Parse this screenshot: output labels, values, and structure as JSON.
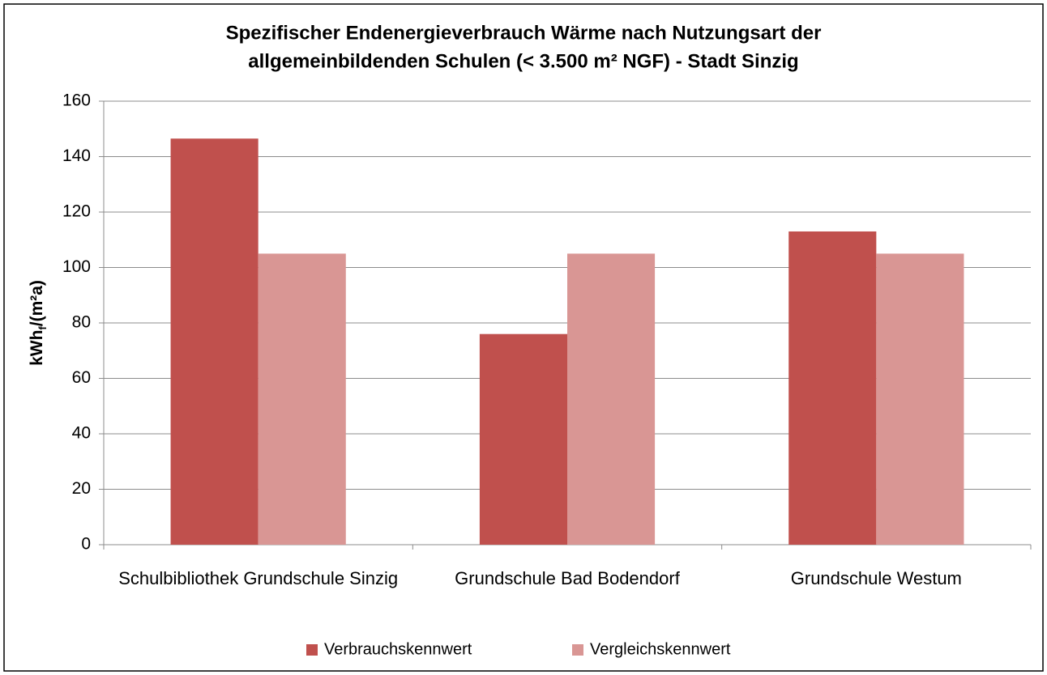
{
  "chart_data": {
    "type": "bar",
    "title": [
      "Spezifischer Endenergieverbrauch Wärme nach Nutzungsart der",
      "allgemeinbildenden Schulen (< 3.500 m² NGF) - Stadt Sinzig"
    ],
    "ylabel": [
      "kWh",
      "f",
      "/(m²a)"
    ],
    "categories": [
      "Schulbibliothek Grundschule Sinzig",
      "Grundschule Bad Bodendorf",
      "Grundschule Westum"
    ],
    "series": [
      {
        "name": "Verbrauchskennwert",
        "color": "#c0504d",
        "values": [
          146.5,
          76,
          113
        ]
      },
      {
        "name": "Vergleichskennwert",
        "color": "#d99694",
        "values": [
          105,
          105,
          105
        ]
      }
    ],
    "ylim": [
      0,
      160
    ],
    "yticks": [
      0,
      20,
      40,
      60,
      80,
      100,
      120,
      140,
      160
    ],
    "grid": true,
    "legend": "bottom"
  }
}
